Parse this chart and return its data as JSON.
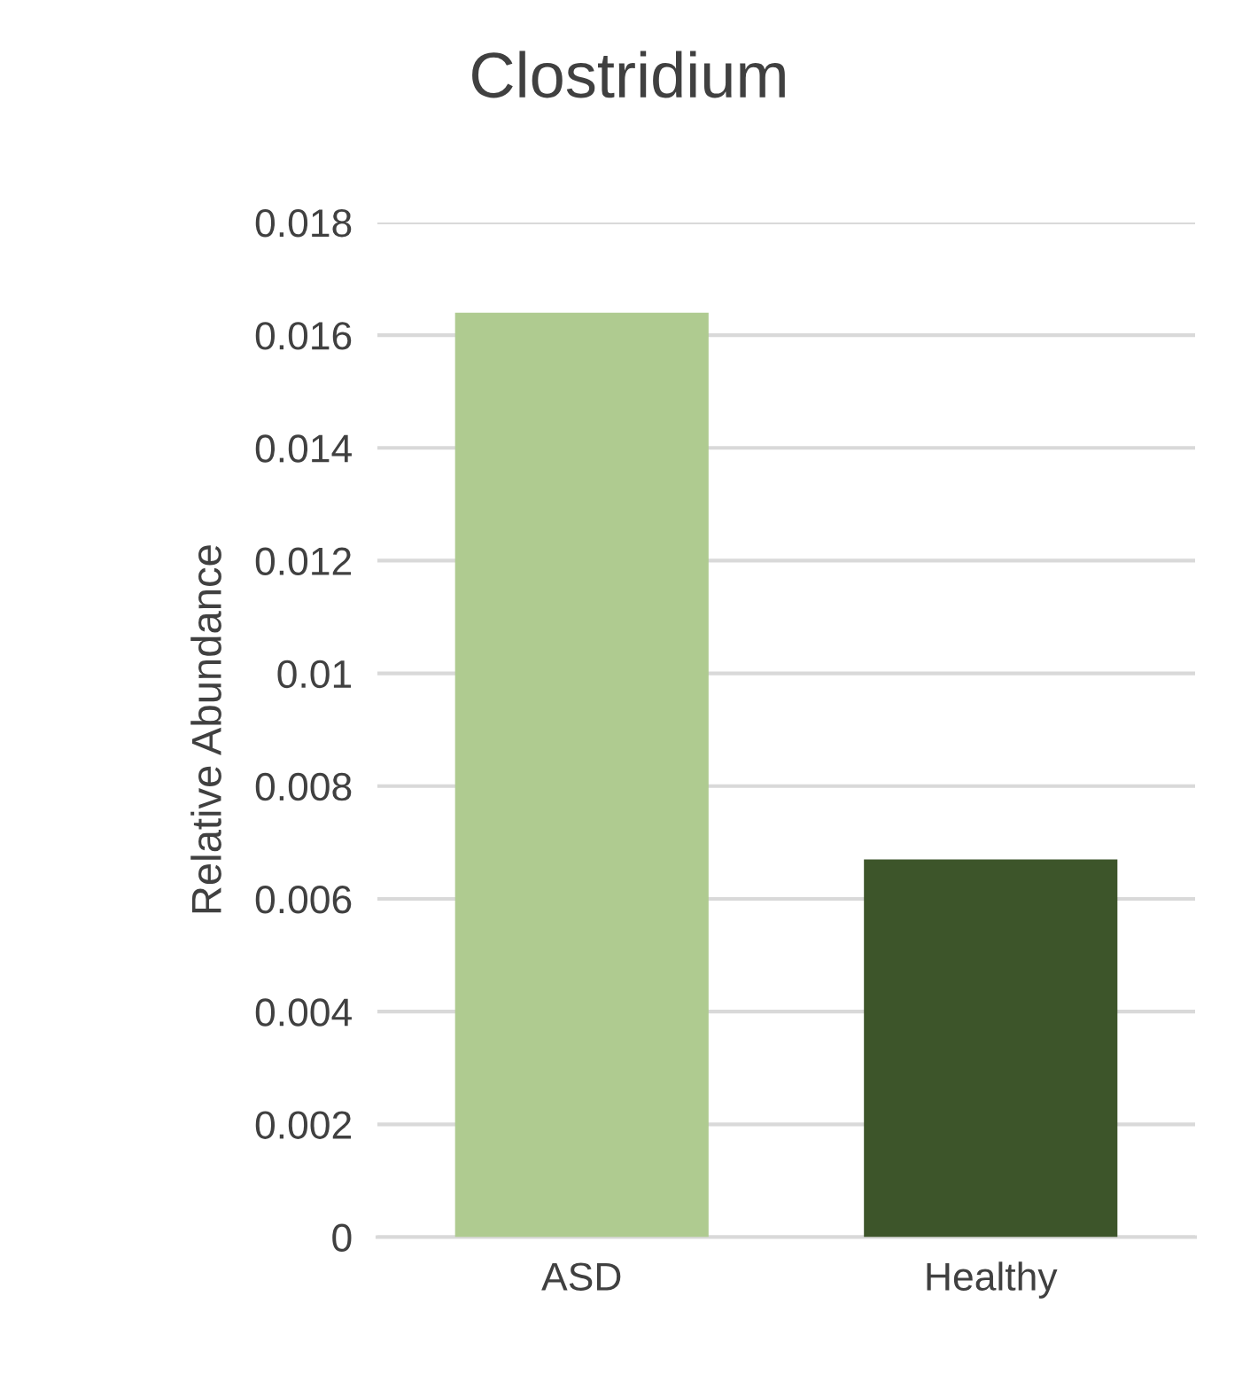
{
  "chart_data": {
    "type": "bar",
    "title": "Clostridium",
    "ylabel": "Relative Abundance",
    "categories": [
      "ASD",
      "Healthy"
    ],
    "values": [
      0.0164,
      0.0067
    ],
    "colors": [
      "#afcb90",
      "#3d552a"
    ],
    "ylim": [
      0,
      0.018
    ],
    "yticks": [
      0,
      {
        "value": 0.002,
        "label": "0.002"
      },
      {
        "value": 0.004,
        "label": "0.004"
      },
      {
        "value": 0.006,
        "label": "0.006"
      },
      {
        "value": 0.008,
        "label": "0.008"
      },
      {
        "value": 0.01,
        "label": "0.01"
      },
      {
        "value": 0.012,
        "label": "0.012"
      },
      {
        "value": 0.014,
        "label": "0.014"
      },
      {
        "value": 0.016,
        "label": "0.016"
      },
      {
        "value": 0.018,
        "label": "0.018"
      }
    ],
    "grid": "y",
    "legend": false
  }
}
